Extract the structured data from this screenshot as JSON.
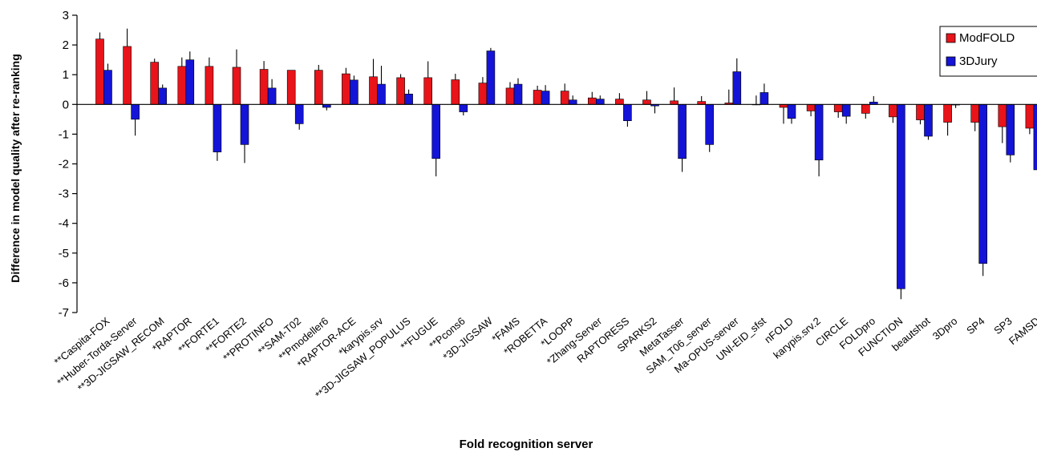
{
  "chart_data": {
    "type": "bar",
    "title": "",
    "xlabel": "Fold recognition server",
    "ylabel": "Difference in model quality after re-ranking",
    "ylim": [
      -7,
      3
    ],
    "yticks": [
      "3",
      "2",
      "1",
      "0",
      "-1",
      "-2",
      "-3",
      "-4",
      "-5",
      "-6",
      "-7"
    ],
    "grid": false,
    "legend_position": "top-right",
    "categories": [
      "**Caspita-FOX",
      "**Huber-Torda-Server",
      "**3D-JIGSAW_RECOM",
      "*RAPTOR",
      "**FORTE1",
      "**FORTE2",
      "**PROTINFO",
      "**SAM-T02",
      "**Pmodeller6",
      "*RAPTOR-ACE",
      "*karypis.srv",
      "**3D-JIGSAW_POPULUS",
      "**FUGUE",
      "**Pcons6",
      "*3D-JIGSAW",
      "*FAMS",
      "*ROBETTA",
      "*LOOPP",
      "*Zhang-Server",
      "RAPTORESS",
      "SPARKS2",
      "MetaTasser",
      "SAM_T06_server",
      "Ma-OPUS-server",
      "UNI-EID_sfst",
      "nFOLD",
      "karypis.srv.2",
      "CIRCLE",
      "FOLDpro",
      "FUNCTION",
      "beautshot",
      "3Dpro",
      "SP4",
      "SP3",
      "FAMSD"
    ],
    "series": [
      {
        "name": "ModFOLD",
        "color": "#e8141a",
        "values": [
          2.2,
          1.95,
          1.42,
          1.28,
          1.28,
          1.25,
          1.18,
          1.15,
          1.15,
          1.03,
          0.93,
          0.9,
          0.9,
          0.83,
          0.72,
          0.55,
          0.48,
          0.45,
          0.22,
          0.18,
          0.15,
          0.12,
          0.1,
          0.05,
          0.0,
          -0.1,
          -0.22,
          -0.25,
          -0.3,
          -0.42,
          -0.52,
          -0.6,
          -0.6,
          -0.75,
          -0.8
        ],
        "errors": [
          0.22,
          0.6,
          0.12,
          0.3,
          0.3,
          0.6,
          0.28,
          0.0,
          0.18,
          0.2,
          0.6,
          0.12,
          0.55,
          0.2,
          0.2,
          0.2,
          0.15,
          0.25,
          0.2,
          0.2,
          0.3,
          0.45,
          0.18,
          0.45,
          0.3,
          0.55,
          0.18,
          0.2,
          0.18,
          0.2,
          0.15,
          0.45,
          0.3,
          0.55,
          0.2
        ]
      },
      {
        "name": "3DJury",
        "color": "#1414d8",
        "values": [
          1.15,
          -0.5,
          0.55,
          1.5,
          -1.6,
          -1.35,
          0.55,
          -0.65,
          -0.1,
          0.82,
          0.68,
          0.35,
          -1.82,
          -0.25,
          1.8,
          0.68,
          0.45,
          0.15,
          0.18,
          -0.55,
          -0.05,
          -1.82,
          -1.35,
          1.1,
          0.4,
          -0.47,
          -1.87,
          -0.4,
          0.08,
          -6.2,
          -1.07,
          -0.02,
          -5.35,
          -1.7,
          -2.2
        ],
        "errors": [
          0.22,
          0.55,
          0.12,
          0.28,
          0.3,
          0.62,
          0.3,
          0.2,
          0.1,
          0.15,
          0.62,
          0.15,
          0.6,
          0.12,
          0.1,
          0.2,
          0.2,
          0.15,
          0.12,
          0.2,
          0.25,
          0.45,
          0.25,
          0.45,
          0.3,
          0.18,
          0.55,
          0.25,
          0.2,
          0.35,
          0.12,
          0.1,
          0.42,
          0.25,
          0.6
        ]
      }
    ]
  }
}
